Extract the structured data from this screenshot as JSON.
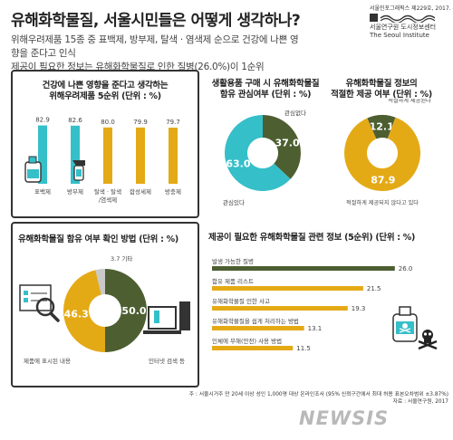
{
  "header": {
    "title": "유해화학물질, 서울시민들은 어떻게 생각하나?",
    "subtitle_line1": "위해우려제품 15종 중 표백제, 방부제, 탈색 · 염색제 순으로 건강에 나쁜 영향을 준다고 인식",
    "subtitle_line2": "제공이 필요한 정보는 유해화학물질로 인한 질병(26.0%)이 1순위",
    "source_tag": "서울인포그래픽스 제229호, 2017. 4. 3.",
    "institute_ko": "서울연구원 도시정보센터",
    "institute_en": "The Seoul Institute"
  },
  "colors": {
    "teal": "#35bfc9",
    "gold": "#e4aa16",
    "olive": "#4d5e31",
    "grey": "#808080"
  },
  "chart_data": [
    {
      "type": "bar",
      "title": "건강에 나쁜 영향을 준다고 생각하는 위해우려제품 5순위 (단위 : %)",
      "title_line1": "건강에 나쁜 영향을 준다고 생각하는",
      "title_line2": "위해우려제품 5순위 (단위 : %)",
      "categories": [
        "표백제",
        "방부제",
        "탈색·염색제",
        "합성세제",
        "방충제"
      ],
      "category_lines": [
        [
          "표백제"
        ],
        [
          "방부제"
        ],
        [
          "탈색 · 탈색",
          "/염색제"
        ],
        [
          "합성세제"
        ],
        [
          "방충제"
        ]
      ],
      "values": [
        82.9,
        82.6,
        80.0,
        79.9,
        79.7
      ],
      "value_labels": [
        "82.9",
        "82.6",
        "80.0",
        "79.9",
        "79.7"
      ],
      "bar_colors": [
        "#35bfc9",
        "#35bfc9",
        "#e4aa16",
        "#e4aa16",
        "#e4aa16"
      ]
    },
    {
      "type": "pie",
      "title": "생활용품 구매 시 유해화학물질 함유 관심여부 (단위 : %)",
      "title_line1": "생활용품 구매 시 유해화학물질",
      "title_line2": "함유 관심여부 (단위 : %)",
      "labels": [
        "관심있다",
        "관심없다"
      ],
      "values": [
        63.0,
        37.0
      ],
      "value_labels": [
        "63.0",
        "37.0"
      ],
      "colors": [
        "#35bfc9",
        "#4d5e31"
      ]
    },
    {
      "type": "pie",
      "title": "유해화학물질 정보의 적절한 제공 여부 (단위 : %)",
      "title_line1": "유해화학물질 정보의",
      "title_line2": "적절한 제공 여부 (단위 : %)",
      "labels": [
        "적절하지 않다",
        "적절하게 제공되고 있다"
      ],
      "display_labels": [
        "적절하게 제공되지 않다고 있다",
        "적절하게 제공된다"
      ],
      "values": [
        87.9,
        12.1
      ],
      "value_labels": [
        "87.9",
        "12.1"
      ],
      "colors": [
        "#e4aa16",
        "#4d5e31"
      ]
    },
    {
      "type": "pie",
      "title": "유해화학물질 함유 여부 확인 방법 (단위 : %)",
      "labels": [
        "인터넷 검색 등",
        "제품에 표시된 내용",
        "기타"
      ],
      "values": [
        50.0,
        46.3,
        3.7
      ],
      "value_labels": [
        "50.0",
        "46.3",
        "3.7 기타"
      ],
      "colors": [
        "#4d5e31",
        "#e4aa16",
        "#c9c9c9"
      ]
    },
    {
      "type": "bar",
      "orientation": "horizontal",
      "title": "제공이 필요한 유해화학물질 관련 정보 (5순위) (단위 : %)",
      "categories": [
        "발생 가능한 질병",
        "함유 제품 리스트",
        "유해화학물질 인한 사고",
        "유해화학물질을 쉽게 처리하는 방법",
        "인체에 무해(안전) 사용 방법"
      ],
      "values": [
        26.0,
        21.5,
        19.3,
        13.1,
        11.5
      ],
      "value_labels": [
        "26.0",
        "21.5",
        "19.3",
        "13.1",
        "11.5"
      ],
      "bar_colors": [
        "#4d5e31",
        "#e4aa16",
        "#e4aa16",
        "#e4aa16",
        "#e4aa16"
      ]
    }
  ],
  "footnote": {
    "line1": "주 : 서울시거주 만 20세 이상 성인 1,000명 대상 온라인조사 (95% 신뢰구간에서 최대 허용 표본오차범위 ±3.87%)",
    "line2": "자료 : 서울연구원, 2017"
  },
  "watermark": "NEWSIS"
}
